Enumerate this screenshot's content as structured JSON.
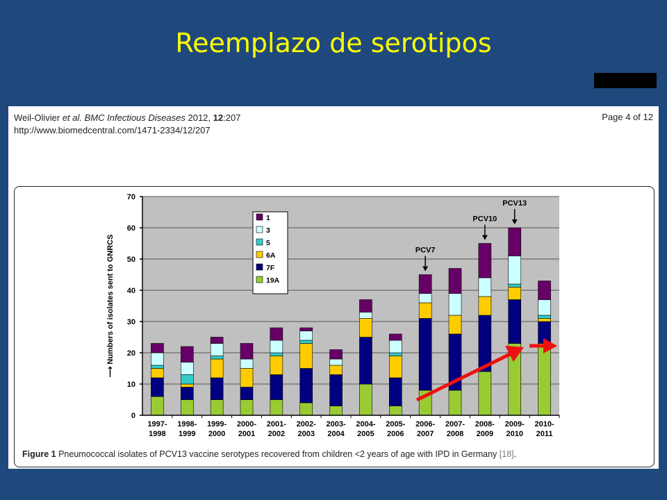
{
  "slide_title": "Reemplazo de serotipos",
  "paper": {
    "citation_author": "Weil-Olivier",
    "citation_etal": " et al. ",
    "citation_journal": "BMC Infectious Diseases",
    "citation_year": " 2012, ",
    "citation_volume": "12",
    "citation_pages": ":207",
    "url": "http://www.biomedcentral.com/1471-2334/12/207",
    "page_label": "Page 4 of 12"
  },
  "caption": {
    "label": "Figure 1",
    "text": " Pneumococcal isolates of PCV13 vaccine serotypes recovered from children <2 years of age with IPD in Germany ",
    "ref": "[18]",
    "end": "."
  },
  "colors": {
    "19A": "#99cc33",
    "7F": "#000080",
    "6A": "#ffcc00",
    "5": "#33cccc",
    "3": "#ccffff",
    "1": "#660066",
    "plot_bg": "#c0c0c0",
    "arrow": "#ee1111"
  },
  "chart_data": {
    "type": "bar",
    "stacked": true,
    "ylabel": "Numbers of isolates sent to GNRCS",
    "ylim": [
      0,
      70
    ],
    "yticks": [
      0,
      10,
      20,
      30,
      40,
      50,
      60,
      70
    ],
    "grid": true,
    "legend_position": "top-left",
    "categories": [
      [
        "1997-",
        "1998"
      ],
      [
        "1998-",
        "1999"
      ],
      [
        "1999-",
        "2000"
      ],
      [
        "2000-",
        "2001"
      ],
      [
        "2001-",
        "2002"
      ],
      [
        "2002-",
        "2003"
      ],
      [
        "2003-",
        "2004"
      ],
      [
        "2004-",
        "2005"
      ],
      [
        "2005-",
        "2006"
      ],
      [
        "2006-",
        "2007"
      ],
      [
        "2007-",
        "2008"
      ],
      [
        "2008-",
        "2009"
      ],
      [
        "2009-",
        "2010"
      ],
      [
        "2010-",
        "2011"
      ]
    ],
    "series": [
      {
        "name": "19A",
        "values": [
          6,
          5,
          5,
          5,
          5,
          4,
          3,
          10,
          3,
          8,
          8,
          14,
          23,
          23
        ]
      },
      {
        "name": "7F",
        "values": [
          6,
          4,
          7,
          4,
          8,
          11,
          10,
          15,
          9,
          23,
          18,
          18,
          14,
          7
        ]
      },
      {
        "name": "6A",
        "values": [
          3,
          1,
          6,
          6,
          6,
          8,
          3,
          6,
          7,
          5,
          6,
          6,
          4,
          1
        ]
      },
      {
        "name": "5",
        "values": [
          1,
          3,
          1,
          0,
          1,
          1,
          0,
          0,
          1,
          0,
          0,
          0,
          1,
          1
        ]
      },
      {
        "name": "3",
        "values": [
          4,
          4,
          4,
          3,
          4,
          3,
          2,
          2,
          4,
          3,
          7,
          6,
          9,
          5
        ]
      },
      {
        "name": "1",
        "values": [
          3,
          5,
          2,
          5,
          4,
          1,
          3,
          4,
          2,
          6,
          8,
          11,
          9,
          6
        ]
      }
    ],
    "annotations": [
      {
        "text": "PCV7",
        "category_index": 9,
        "value": 45
      },
      {
        "text": "PCV10",
        "category_index": 11,
        "value": 55
      },
      {
        "text": "PCV13",
        "category_index": 12,
        "value": 60
      }
    ]
  }
}
